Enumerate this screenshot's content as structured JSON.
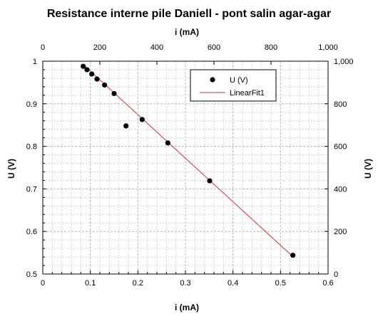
{
  "chart_data": {
    "type": "scatter",
    "title": "Resistance interne pile Daniell - pont salin agar-agar",
    "xlabel": "i (mA)",
    "ylabel": "U (V)",
    "top_xlabel": "i (mA)",
    "right_ylabel": "U (V)",
    "xlim": [
      0,
      0.6
    ],
    "ylim": [
      0.5,
      1.0
    ],
    "top_xlim": [
      0,
      1000
    ],
    "right_ylim": [
      0,
      1000
    ],
    "x_ticks": [
      "0",
      "0.1",
      "0.2",
      "0.3",
      "0.4",
      "0.5",
      "0.6"
    ],
    "y_ticks": [
      "0.5",
      "0.6",
      "0.7",
      "0.8",
      "0.9",
      "1"
    ],
    "top_x_ticks": [
      "0",
      "200",
      "400",
      "600",
      "800",
      "1,000"
    ],
    "right_y_ticks": [
      "0",
      "200",
      "400",
      "600",
      "800",
      "1,000"
    ],
    "grid": true,
    "legend_position": "top-right",
    "series": [
      {
        "name": "U (V)",
        "kind": "scatter",
        "color": "#000000",
        "x": [
          0.085,
          0.093,
          0.103,
          0.114,
          0.13,
          0.15,
          0.175,
          0.209,
          0.263,
          0.351,
          0.526
        ],
        "y": [
          0.988,
          0.98,
          0.97,
          0.958,
          0.944,
          0.924,
          0.848,
          0.863,
          0.808,
          0.719,
          0.544
        ]
      },
      {
        "name": "LinearFit1",
        "kind": "line",
        "color": "#e03030",
        "x": [
          0.085,
          0.526
        ],
        "y": [
          0.992,
          0.541
        ]
      }
    ]
  }
}
